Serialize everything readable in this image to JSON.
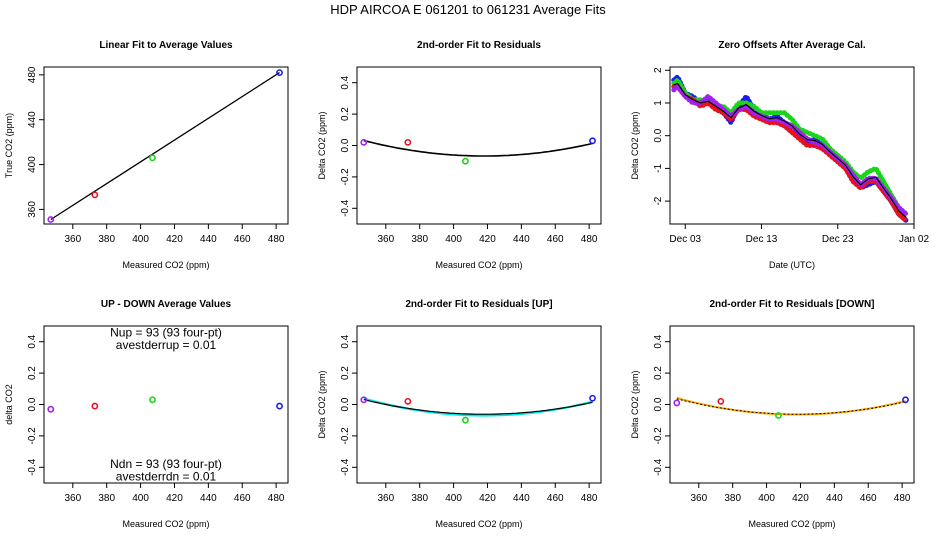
{
  "page_title": "HDP   AIRCOA E   061201 to 061231   Average Fits",
  "colors": {
    "red": "#e8101c",
    "green": "#19d619",
    "blue": "#1c1cf0",
    "purple": "#a020f0",
    "cyan": "#00e5e5",
    "orange": "#ffa500",
    "black": "#000000",
    "darkblue": "#00008b"
  },
  "chart_data": [
    {
      "id": "p1",
      "type": "scatter",
      "title": "Linear Fit to Average Values",
      "xlabel": "Measured CO2 (ppm)",
      "ylabel": "True CO2 (ppm)",
      "xlim": [
        343,
        487
      ],
      "ylim": [
        347,
        487
      ],
      "xticks": [
        360,
        380,
        400,
        420,
        440,
        460,
        480
      ],
      "yticks": [
        360,
        400,
        440,
        480
      ],
      "points": [
        {
          "x": 347,
          "y": 351,
          "color": "purple"
        },
        {
          "x": 373,
          "y": 373,
          "color": "red"
        },
        {
          "x": 407,
          "y": 406,
          "color": "green"
        },
        {
          "x": 482,
          "y": 482,
          "color": "blue"
        }
      ],
      "lines": [
        {
          "color": "black",
          "x": [
            347,
            482
          ],
          "y": [
            351,
            482
          ]
        }
      ]
    },
    {
      "id": "p2",
      "type": "scatter",
      "title": "2nd-order Fit to Residuals",
      "xlabel": "Measured CO2 (ppm)",
      "ylabel": "Delta CO2 (ppm)",
      "xlim": [
        343,
        487
      ],
      "ylim": [
        -0.5,
        0.5
      ],
      "xticks": [
        360,
        380,
        400,
        420,
        440,
        460,
        480
      ],
      "yticks": [
        -0.4,
        -0.2,
        0.0,
        0.2,
        0.4
      ],
      "points": [
        {
          "x": 347,
          "y": 0.02,
          "color": "purple"
        },
        {
          "x": 373,
          "y": 0.02,
          "color": "red"
        },
        {
          "x": 407,
          "y": -0.1,
          "color": "green"
        },
        {
          "x": 482,
          "y": 0.03,
          "color": "blue"
        }
      ],
      "curves": [
        {
          "color": "black",
          "a": -0.067,
          "b": 418,
          "c": 1.96e-05,
          "x0": 347,
          "x1": 482
        }
      ]
    },
    {
      "id": "p3",
      "type": "line",
      "title": "Zero Offsets After Average Cal.",
      "xlabel": "Date (UTC)",
      "ylabel": "Delta CO2 (ppm)",
      "xlim": [
        0,
        32
      ],
      "ylim": [
        -2.7,
        2.1
      ],
      "xticks": [
        {
          "v": 2,
          "label": "Dec 03"
        },
        {
          "v": 12,
          "label": "Dec 13"
        },
        {
          "v": 22,
          "label": "Dec 23"
        },
        {
          "v": 32,
          "label": "Jan 02"
        }
      ],
      "yticks": [
        -2,
        -1,
        0,
        1,
        2
      ],
      "series": [
        {
          "name": "blue",
          "color": "blue",
          "x": [
            0.5,
            1,
            2,
            3,
            4,
            5,
            6,
            7,
            8,
            9,
            10,
            11,
            12,
            13,
            14,
            15,
            16,
            17,
            18,
            19,
            20,
            21,
            22,
            23,
            24,
            25,
            26,
            27,
            28,
            29,
            30,
            31
          ],
          "y": [
            1.7,
            1.8,
            1.3,
            1.2,
            1.0,
            1.1,
            0.9,
            0.7,
            0.4,
            0.9,
            1.2,
            0.8,
            0.7,
            0.5,
            0.6,
            0.4,
            0.3,
            0.0,
            -0.2,
            -0.1,
            -0.3,
            -0.5,
            -0.7,
            -0.9,
            -1.3,
            -1.6,
            -1.5,
            -1.4,
            -1.7,
            -2.0,
            -2.4,
            -2.6
          ]
        },
        {
          "name": "green",
          "color": "green",
          "x": [
            0.5,
            1,
            2,
            3,
            4,
            5,
            6,
            7,
            8,
            9,
            10,
            11,
            12,
            13,
            14,
            15,
            16,
            17,
            18,
            19,
            20,
            21,
            22,
            23,
            24,
            25,
            26,
            27,
            28,
            29,
            30,
            31
          ],
          "y": [
            1.6,
            1.7,
            1.3,
            1.1,
            1.1,
            1.0,
            0.9,
            0.9,
            0.7,
            1.0,
            1.0,
            0.9,
            0.7,
            0.7,
            0.7,
            0.7,
            0.5,
            0.2,
            0.1,
            0.0,
            -0.1,
            -0.4,
            -0.6,
            -0.8,
            -1.1,
            -1.3,
            -1.1,
            -1.0,
            -1.4,
            -1.8,
            -2.2,
            -2.4
          ]
        },
        {
          "name": "red",
          "color": "red",
          "x": [
            0.5,
            1,
            2,
            3,
            4,
            5,
            6,
            7,
            8,
            9,
            10,
            11,
            12,
            13,
            14,
            15,
            16,
            17,
            18,
            19,
            20,
            21,
            22,
            23,
            24,
            25,
            26,
            27,
            28,
            29,
            30,
            31
          ],
          "y": [
            1.5,
            1.5,
            1.2,
            1.1,
            0.9,
            1.0,
            0.8,
            0.7,
            0.5,
            0.8,
            0.8,
            0.6,
            0.5,
            0.4,
            0.4,
            0.3,
            0.1,
            -0.1,
            -0.3,
            -0.3,
            -0.4,
            -0.6,
            -0.8,
            -1.0,
            -1.4,
            -1.6,
            -1.4,
            -1.4,
            -1.7,
            -2.0,
            -2.4,
            -2.6
          ]
        },
        {
          "name": "purple",
          "color": "purple",
          "x": [
            0.5,
            1,
            2,
            3,
            4,
            5,
            6,
            7,
            8,
            9,
            10,
            11,
            12,
            13,
            14,
            15,
            16,
            17,
            18,
            19,
            20,
            21,
            22,
            23,
            24,
            25,
            26,
            27,
            28,
            29,
            30,
            31
          ],
          "y": [
            1.4,
            1.5,
            1.2,
            1.0,
            1.0,
            1.2,
            1.0,
            0.8,
            0.6,
            0.8,
            0.9,
            0.7,
            0.6,
            0.5,
            0.5,
            0.4,
            0.3,
            0.1,
            -0.1,
            -0.2,
            -0.3,
            -0.5,
            -0.7,
            -0.9,
            -1.2,
            -1.5,
            -1.3,
            -1.3,
            -1.6,
            -1.9,
            -2.2,
            -2.4
          ]
        },
        {
          "name": "black",
          "color": "black",
          "x": [
            0.5,
            1,
            2,
            3,
            4,
            5,
            6,
            7,
            8,
            9,
            10,
            11,
            12,
            13,
            14,
            15,
            16,
            17,
            18,
            19,
            20,
            21,
            22,
            23,
            24,
            25,
            26,
            27,
            28,
            29,
            30,
            31
          ],
          "y": [
            1.55,
            1.6,
            1.25,
            1.1,
            1.0,
            1.05,
            0.9,
            0.75,
            0.55,
            0.85,
            0.95,
            0.75,
            0.62,
            0.52,
            0.55,
            0.45,
            0.3,
            0.05,
            -0.12,
            -0.15,
            -0.27,
            -0.5,
            -0.7,
            -0.9,
            -1.25,
            -1.5,
            -1.32,
            -1.27,
            -1.6,
            -1.92,
            -2.3,
            -2.5
          ]
        }
      ]
    },
    {
      "id": "p4",
      "type": "scatter",
      "title": "UP - DOWN Average Values",
      "xlabel": "Measured CO2 (ppm)",
      "ylabel": "delta CO2",
      "xlim": [
        343,
        487
      ],
      "ylim": [
        -0.5,
        0.5
      ],
      "xticks": [
        360,
        380,
        400,
        420,
        440,
        460,
        480
      ],
      "yticks": [
        -0.4,
        -0.2,
        0.0,
        0.2,
        0.4
      ],
      "points": [
        {
          "x": 347,
          "y": -0.03,
          "color": "purple"
        },
        {
          "x": 373,
          "y": -0.01,
          "color": "red"
        },
        {
          "x": 407,
          "y": 0.03,
          "color": "green"
        },
        {
          "x": 482,
          "y": -0.01,
          "color": "blue"
        }
      ],
      "annotations": [
        {
          "text": "Nup = 93 (93 four-pt)",
          "x": 415,
          "y": 0.46
        },
        {
          "text": "avestderrup =  0.01",
          "x": 415,
          "y": 0.38
        },
        {
          "text": "Ndn = 93 (93 four-pt)",
          "x": 415,
          "y": -0.38
        },
        {
          "text": "avestderrdn =  0.01",
          "x": 415,
          "y": -0.46
        }
      ]
    },
    {
      "id": "p5",
      "type": "scatter",
      "title": "2nd-order Fit to Residuals [UP]",
      "xlabel": "Measured CO2 (ppm)",
      "ylabel": "Delta CO2 (ppm)",
      "xlim": [
        343,
        487
      ],
      "ylim": [
        -0.5,
        0.5
      ],
      "xticks": [
        360,
        380,
        400,
        420,
        440,
        460,
        480
      ],
      "yticks": [
        -0.4,
        -0.2,
        0.0,
        0.2,
        0.4
      ],
      "points": [
        {
          "x": 347,
          "y": 0.03,
          "color": "purple"
        },
        {
          "x": 373,
          "y": 0.02,
          "color": "red"
        },
        {
          "x": 407,
          "y": -0.1,
          "color": "green"
        },
        {
          "x": 482,
          "y": 0.04,
          "color": "blue"
        }
      ],
      "curves": [
        {
          "color": "cyan",
          "a": -0.07,
          "b": 418,
          "c": 2.15e-05,
          "x0": 347,
          "x1": 482,
          "width": 2.2
        },
        {
          "color": "black",
          "a": -0.062,
          "b": 418,
          "c": 1.85e-05,
          "x0": 347,
          "x1": 482,
          "width": 1.2
        }
      ]
    },
    {
      "id": "p6",
      "type": "scatter",
      "title": "2nd-order Fit to Residuals [DOWN]",
      "xlabel": "Measured CO2 (ppm)",
      "ylabel": "Delta CO2 (ppm)",
      "xlim": [
        343,
        487
      ],
      "ylim": [
        -0.5,
        0.5
      ],
      "xticks": [
        360,
        380,
        400,
        420,
        440,
        460,
        480
      ],
      "yticks": [
        -0.4,
        -0.2,
        0.0,
        0.2,
        0.4
      ],
      "points": [
        {
          "x": 347,
          "y": 0.01,
          "color": "purple"
        },
        {
          "x": 373,
          "y": 0.02,
          "color": "red"
        },
        {
          "x": 407,
          "y": -0.07,
          "color": "green"
        },
        {
          "x": 482,
          "y": 0.03,
          "color": "blue"
        }
      ],
      "curves": [
        {
          "color": "orange",
          "a": -0.064,
          "b": 418,
          "c": 2.1e-05,
          "x0": 347,
          "x1": 482,
          "width": 2.0
        },
        {
          "color": "black",
          "a": -0.062,
          "b": 418,
          "c": 1.95e-05,
          "x0": 347,
          "x1": 482,
          "width": 1.0,
          "dash": "2,2"
        }
      ]
    }
  ]
}
